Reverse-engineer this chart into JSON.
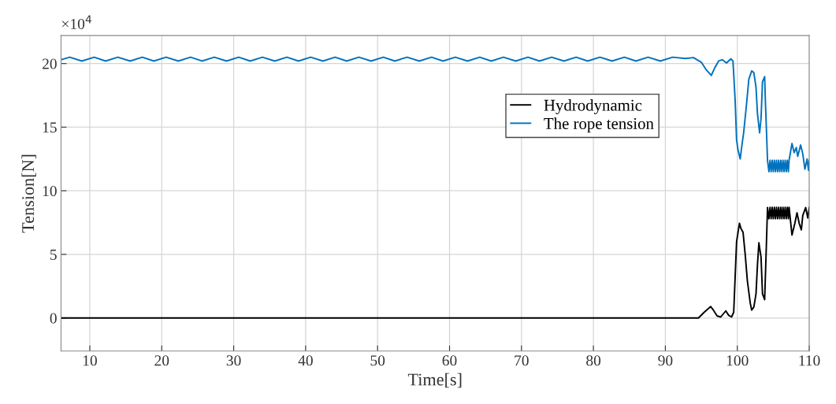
{
  "chart_data": {
    "type": "line",
    "xlabel": "Time[s]",
    "ylabel": "Tension[N]",
    "annotations": [
      "×10$^{4}$"
    ],
    "xlim": [
      6,
      110
    ],
    "xticks": [
      10,
      20,
      30,
      40,
      50,
      60,
      70,
      80,
      90,
      100,
      110
    ],
    "ylim": [
      -2.6,
      22.2
    ],
    "yticks": [
      0,
      5,
      10,
      15,
      20
    ],
    "grid": true,
    "legend": "top right",
    "line_style": "solid",
    "series": [
      {
        "name": "Hydrodynamic",
        "color": "#000000",
        "x": [
          6,
          94.6,
          95.4,
          96.3,
          96.6,
          97.2,
          97.7,
          98.4,
          98.8,
          99.2,
          99.5,
          99.9,
          100.3,
          100.5,
          100.8,
          101.1,
          101.4,
          101.8,
          102.0,
          102.3,
          102.6,
          102.8,
          103.0,
          103.3,
          103.5,
          103.8,
          104.0,
          104.2,
          104.4,
          104.55,
          104.7,
          104.85,
          105.0,
          105.15,
          105.3,
          105.45,
          105.6,
          105.75,
          105.9,
          106.05,
          106.2,
          106.35,
          106.5,
          106.65,
          106.8,
          106.95,
          107.1,
          107.2,
          107.6,
          108.0,
          108.3,
          108.6,
          108.9,
          109.1,
          109.5,
          109.8,
          110
        ],
        "values": [
          0,
          0,
          0.45,
          0.9,
          0.68,
          0.16,
          0.08,
          0.56,
          0.21,
          0.08,
          0.45,
          6.0,
          7.45,
          7.04,
          6.73,
          4.98,
          2.92,
          1.17,
          0.62,
          0.86,
          1.9,
          4.16,
          5.91,
          4.77,
          1.9,
          1.44,
          4.98,
          8.68,
          7.8,
          8.7,
          7.8,
          8.7,
          7.8,
          8.7,
          7.8,
          8.7,
          7.8,
          8.7,
          7.8,
          8.7,
          7.8,
          8.7,
          7.8,
          8.7,
          7.8,
          8.7,
          7.8,
          8.7,
          6.52,
          7.45,
          8.27,
          7.45,
          6.93,
          8.06,
          8.68,
          7.86,
          8.68
        ]
      },
      {
        "name": "The rope tension",
        "color": "#0072bd",
        "x": [
          6,
          7.2,
          8.9,
          10.6,
          12.2,
          13.9,
          15.6,
          17.3,
          18.9,
          20.6,
          22.3,
          24.0,
          25.6,
          27.3,
          29.0,
          30.7,
          32.3,
          34.0,
          35.7,
          37.4,
          39.0,
          40.7,
          42.4,
          44.1,
          45.7,
          47.4,
          49.1,
          50.8,
          52.4,
          54.1,
          55.8,
          57.5,
          59.1,
          60.8,
          62.5,
          64.2,
          65.8,
          67.5,
          69.2,
          70.9,
          72.5,
          74.2,
          75.9,
          77.6,
          79.2,
          80.9,
          82.6,
          84.3,
          85.9,
          87.6,
          89.3,
          91.0,
          92.8,
          93.9,
          95.0,
          95.7,
          96.4,
          96.8,
          97.4,
          97.9,
          98.5,
          99.1,
          99.4,
          99.7,
          99.9,
          100.1,
          100.4,
          100.6,
          100.9,
          101.3,
          101.6,
          102.0,
          102.3,
          102.6,
          102.8,
          103.1,
          103.3,
          103.5,
          103.8,
          103.9,
          104.2,
          104.4,
          104.55,
          104.7,
          104.85,
          105.0,
          105.15,
          105.3,
          105.45,
          105.6,
          105.75,
          105.9,
          106.05,
          106.2,
          106.35,
          106.5,
          106.65,
          106.8,
          106.95,
          107.1,
          107.2,
          107.6,
          107.9,
          108.2,
          108.4,
          108.8,
          109.1,
          109.4,
          109.7,
          109.9,
          110
        ],
        "values": [
          20.3,
          20.5,
          20.2,
          20.5,
          20.2,
          20.5,
          20.2,
          20.5,
          20.2,
          20.5,
          20.2,
          20.5,
          20.2,
          20.5,
          20.2,
          20.5,
          20.2,
          20.5,
          20.2,
          20.5,
          20.2,
          20.5,
          20.2,
          20.5,
          20.2,
          20.5,
          20.2,
          20.5,
          20.2,
          20.5,
          20.2,
          20.5,
          20.2,
          20.5,
          20.2,
          20.5,
          20.2,
          20.5,
          20.2,
          20.5,
          20.2,
          20.5,
          20.2,
          20.5,
          20.2,
          20.5,
          20.2,
          20.5,
          20.2,
          20.5,
          20.2,
          20.5,
          20.4,
          20.47,
          20.1,
          19.49,
          19.07,
          19.59,
          20.2,
          20.3,
          20.04,
          20.37,
          20.2,
          17.1,
          14.0,
          13.2,
          12.5,
          13.4,
          14.65,
          16.9,
          18.77,
          19.42,
          19.28,
          18.15,
          16.09,
          14.55,
          15.68,
          18.56,
          18.97,
          17.12,
          12.39,
          11.5,
          12.4,
          11.5,
          12.4,
          11.5,
          12.4,
          11.5,
          12.4,
          11.5,
          12.4,
          11.5,
          12.4,
          11.5,
          12.4,
          11.5,
          12.4,
          11.5,
          12.4,
          11.5,
          12.4,
          13.72,
          13.0,
          13.4,
          12.7,
          13.6,
          12.9,
          11.7,
          12.5,
          11.6,
          12.4
        ]
      }
    ]
  }
}
